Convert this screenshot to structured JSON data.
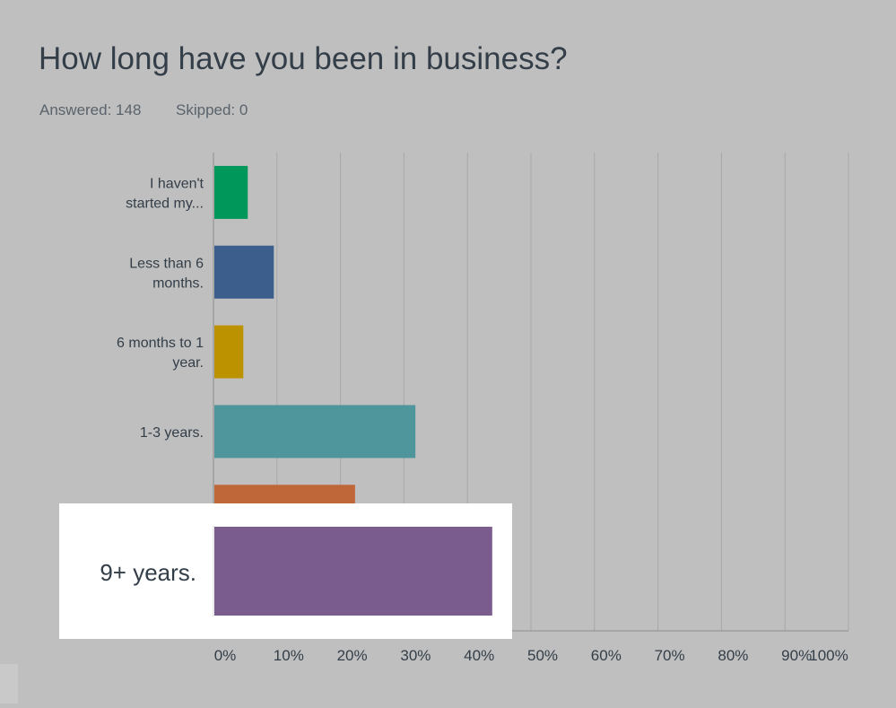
{
  "question": "How long have you been in business?",
  "stats": {
    "answered": "Answered: 148",
    "skipped": "Skipped: 0"
  },
  "colors": {
    "background": "#bfbfbf",
    "text": "#333e48",
    "gridline": "#a8a8a8",
    "axis": "#8c8c8c",
    "highlight_box": "#ffffff"
  },
  "chart_data": {
    "type": "bar",
    "orientation": "horizontal",
    "title": "How long have you been in business?",
    "categories": [
      [
        "I haven't",
        "started my..."
      ],
      [
        "Less than 6",
        "months."
      ],
      [
        "6 months to 1",
        "year."
      ],
      [
        "1-3 years."
      ],
      [
        ""
      ],
      [
        "9+ years."
      ]
    ],
    "values": [
      5.4,
      9.5,
      4.7,
      31.8,
      22.3,
      43.9
    ],
    "bar_colors": [
      "#00975a",
      "#3c5e8d",
      "#bd9200",
      "#4f959c",
      "#c0673a",
      "#7b5c8f"
    ],
    "highlighted_index": 5,
    "xlim": [
      0,
      100
    ],
    "x_ticks": [
      "0%",
      "10%",
      "20%",
      "30%",
      "40%",
      "50%",
      "60%",
      "70%",
      "80%",
      "90%",
      "100%"
    ],
    "grid": true
  }
}
